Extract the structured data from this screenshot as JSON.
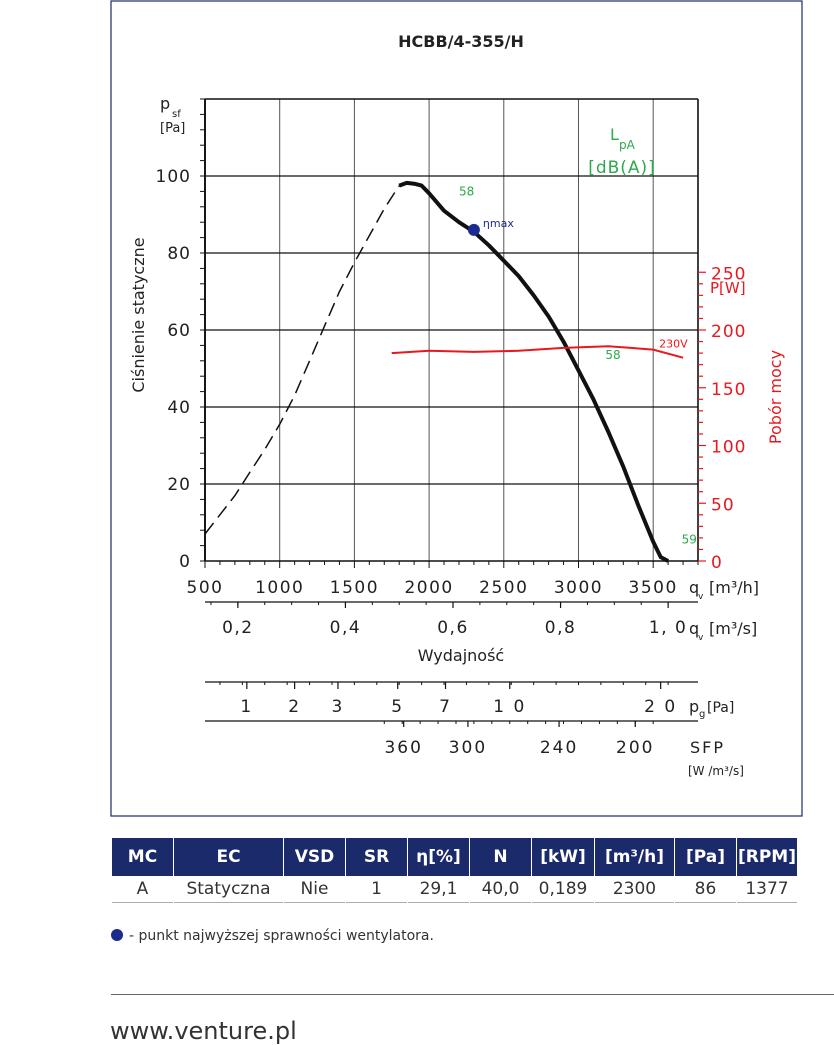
{
  "chart_data": {
    "type": "line",
    "title": "HCBB/4-355/H",
    "ylabel": "Ciśnienie statyczne",
    "y_symbol": "p",
    "y_symbol_sub": "sf",
    "y_unit": "[Pa]",
    "ylim": [
      0,
      120
    ],
    "y_ticks": [
      "0",
      "20",
      "40",
      "60",
      "80",
      "100"
    ],
    "x_axis_m3h": {
      "label_symbol": "q",
      "label_sub": "v",
      "unit": "[m³/h]",
      "range": [
        500,
        3800
      ],
      "ticks": [
        "500",
        "1000",
        "1500",
        "2000",
        "2500",
        "3000",
        "3500"
      ]
    },
    "x_axis_m3s": {
      "label_symbol": "q",
      "label_sub": "v",
      "unit": "[m³/s]",
      "ticks": [
        {
          "v": 0.2,
          "t": "0,2"
        },
        {
          "v": 0.4,
          "t": "0,4"
        },
        {
          "v": 0.6,
          "t": "0,6"
        },
        {
          "v": 0.8,
          "t": "0,8"
        },
        {
          "v": 1.0,
          "t": "1, 0"
        }
      ]
    },
    "xlabel": "Wydajność",
    "pg_axis": {
      "label": "p",
      "label_sub": "g",
      "unit": "[Pa]",
      "ticks": [
        {
          "m3h": 780,
          "t": "1"
        },
        {
          "m3h": 1100,
          "t": "2"
        },
        {
          "m3h": 1390,
          "t": "3"
        },
        {
          "m3h": 1790,
          "t": "5"
        },
        {
          "m3h": 2110,
          "t": "7"
        },
        {
          "m3h": 2540,
          "t": "1 0"
        },
        {
          "m3h": 3550,
          "t": "2 0"
        }
      ]
    },
    "sfp_axis": {
      "label": "SFP",
      "unit": "[W /m³/s]",
      "ticks": [
        {
          "m3h": 1830,
          "t": "360"
        },
        {
          "m3h": 2260,
          "t": "300"
        },
        {
          "m3h": 2870,
          "t": "240"
        },
        {
          "m3h": 3380,
          "t": "200"
        }
      ]
    },
    "power_axis": {
      "label": "Pobór mocy",
      "unit": "P[W]",
      "ylim": [
        0,
        400
      ],
      "ticks": [
        "0",
        "50",
        "100",
        "150",
        "200",
        "250"
      ]
    },
    "series": [
      {
        "kind": "fan-curve",
        "x": [
          1800,
          1850,
          1900,
          1950,
          2000,
          2100,
          2200,
          2300,
          2400,
          2500,
          2600,
          2700,
          2800,
          2900,
          3000,
          3100,
          3200,
          3300,
          3400,
          3500,
          3550,
          3600
        ],
        "y": [
          97.5,
          98.2,
          98.0,
          97.5,
          95.5,
          91,
          88,
          85.5,
          82,
          78,
          74,
          69,
          63.5,
          57,
          49.5,
          42,
          33.5,
          24.5,
          14.5,
          5,
          1,
          0
        ]
      },
      {
        "kind": "unstable-range",
        "x": [
          500,
          600,
          700,
          800,
          900,
          1000,
          1100,
          1200,
          1300,
          1400,
          1500,
          1600,
          1700,
          1800
        ],
        "y": [
          7,
          12,
          17,
          23,
          29,
          35.5,
          43,
          52,
          61,
          70,
          77.5,
          84.5,
          91.5,
          97.5
        ]
      },
      {
        "name": "230V",
        "kind": "power",
        "x": [
          1750,
          2000,
          2300,
          2600,
          2900,
          3200,
          3500,
          3700
        ],
        "y": [
          180,
          182,
          181,
          182,
          184.5,
          186,
          183,
          176
        ]
      }
    ],
    "sound_label": {
      "symbol": "L",
      "sub": "pA",
      "unit": "[dB(A)]"
    },
    "sound_points": [
      {
        "x": 2200,
        "y": 95,
        "t": "58"
      },
      {
        "x": 3180,
        "y": 52.5,
        "t": "58"
      },
      {
        "x": 3690,
        "y": 4.5,
        "t": "59"
      }
    ],
    "eta_point": {
      "x": 2300,
      "y": 86,
      "label": "ηmax"
    },
    "colors": {
      "axis": "#111111",
      "power": "#e8181e",
      "sound": "#2ea84d",
      "eta": "#1b2a8f",
      "curve": "#111111"
    }
  },
  "table": {
    "headers": [
      "MC",
      "EC",
      "VSD",
      "SR",
      "η[%]",
      "N",
      "[kW]",
      "[m³/h]",
      "[Pa]",
      "[RPM]"
    ],
    "row": [
      "A",
      "Statyczna",
      "Nie",
      "1",
      "29,1",
      "40,0",
      "0,189",
      "2300",
      "86",
      "1377"
    ]
  },
  "legend_note": "- punkt najwyższej sprawności wentylatora.",
  "footer_url": "www.venture.pl"
}
